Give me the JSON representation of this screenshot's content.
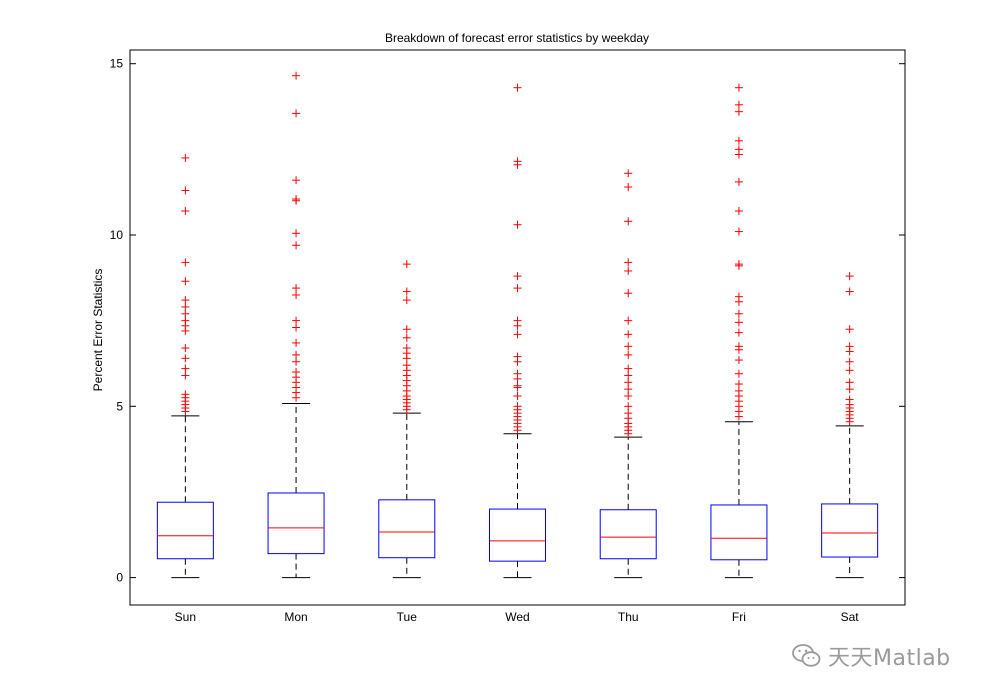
{
  "chart_data": {
    "type": "box",
    "title": "Breakdown of forecast error statistics by weekday",
    "ylabel": "Percent Error Statistics",
    "xlabel": "",
    "ylim": [
      -0.8,
      15.4
    ],
    "yticks": [
      0,
      5,
      10,
      15
    ],
    "grid": false,
    "categories": [
      "Sun",
      "Mon",
      "Tue",
      "Wed",
      "Thu",
      "Fri",
      "Sat"
    ],
    "boxes": [
      {
        "label": "Sun",
        "whisker_low": 0,
        "q1": 0.55,
        "median": 1.22,
        "q3": 2.2,
        "whisker_high": 4.72,
        "outliers": [
          4.85,
          4.95,
          5.05,
          5.15,
          5.25,
          5.35,
          5.9,
          6.1,
          6.4,
          6.7,
          7.2,
          7.35,
          7.5,
          7.7,
          7.9,
          8.1,
          8.65,
          9.2,
          10.7,
          11.3,
          12.25
        ]
      },
      {
        "label": "Mon",
        "whisker_low": 0,
        "q1": 0.7,
        "median": 1.45,
        "q3": 2.47,
        "whisker_high": 5.08,
        "outliers": [
          5.25,
          5.4,
          5.55,
          5.7,
          5.85,
          6.0,
          6.3,
          6.5,
          6.85,
          7.3,
          7.5,
          8.25,
          8.45,
          9.7,
          10.05,
          11.0,
          11.05,
          11.6,
          13.55,
          14.65
        ]
      },
      {
        "label": "Tue",
        "whisker_low": 0,
        "q1": 0.58,
        "median": 1.33,
        "q3": 2.27,
        "whisker_high": 4.8,
        "outliers": [
          4.9,
          5.0,
          5.1,
          5.2,
          5.3,
          5.45,
          5.6,
          5.75,
          5.9,
          6.05,
          6.2,
          6.4,
          6.55,
          6.7,
          7.0,
          7.25,
          8.1,
          8.35,
          9.15
        ]
      },
      {
        "label": "Wed",
        "whisker_low": 0,
        "q1": 0.48,
        "median": 1.07,
        "q3": 2.0,
        "whisker_high": 4.2,
        "outliers": [
          4.3,
          4.4,
          4.5,
          4.6,
          4.7,
          4.8,
          4.9,
          5.0,
          5.3,
          5.55,
          5.6,
          5.8,
          5.95,
          6.3,
          6.45,
          7.1,
          7.35,
          7.5,
          8.45,
          8.8,
          10.3,
          12.05,
          12.15,
          14.3
        ]
      },
      {
        "label": "Thu",
        "whisker_low": 0,
        "q1": 0.55,
        "median": 1.18,
        "q3": 1.98,
        "whisker_high": 4.1,
        "outliers": [
          4.2,
          4.3,
          4.4,
          4.5,
          4.65,
          4.8,
          5.0,
          5.3,
          5.5,
          5.7,
          5.9,
          6.1,
          6.5,
          6.75,
          7.1,
          7.5,
          8.3,
          8.95,
          9.2,
          10.4,
          11.4,
          11.8
        ]
      },
      {
        "label": "Fri",
        "whisker_low": 0,
        "q1": 0.52,
        "median": 1.15,
        "q3": 2.12,
        "whisker_high": 4.55,
        "outliers": [
          4.7,
          4.85,
          5.0,
          5.15,
          5.3,
          5.45,
          5.65,
          5.95,
          6.35,
          6.65,
          6.75,
          7.15,
          7.45,
          7.7,
          8.05,
          8.2,
          9.1,
          9.15,
          10.1,
          10.7,
          11.55,
          12.35,
          12.5,
          12.75,
          13.6,
          13.8,
          14.3
        ]
      },
      {
        "label": "Sat",
        "whisker_low": 0,
        "q1": 0.6,
        "median": 1.3,
        "q3": 2.15,
        "whisker_high": 4.43,
        "outliers": [
          4.55,
          4.65,
          4.75,
          4.85,
          4.95,
          5.05,
          5.2,
          5.5,
          5.7,
          6.05,
          6.3,
          6.6,
          6.75,
          7.25,
          8.35,
          8.8
        ]
      }
    ],
    "colors": {
      "box": "#0000ff",
      "median": "#ff0000",
      "whisker": "#000000",
      "outlier": "#ff0000",
      "axis": "#000000"
    }
  },
  "watermark": {
    "text": "天天Matlab",
    "icon": "wechat-icon"
  }
}
